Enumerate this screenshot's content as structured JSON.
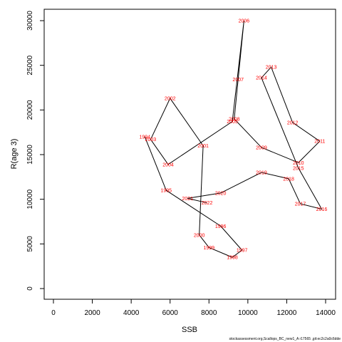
{
  "chart_data": {
    "type": "line",
    "xlabel": "SSB",
    "ylabel": "R(age 3)",
    "xlim": [
      0,
      14000
    ],
    "ylim": [
      0,
      30000
    ],
    "x_ticks": [
      0,
      2000,
      4000,
      6000,
      8000,
      10000,
      12000,
      14000
    ],
    "y_ticks": [
      0,
      5000,
      10000,
      15000,
      20000,
      25000,
      30000
    ],
    "points": [
      {
        "year": "1994",
        "x": 4700,
        "y": 17000
      },
      {
        "year": "1995",
        "x": 5800,
        "y": 11000
      },
      {
        "year": "1996",
        "x": 8600,
        "y": 7000
      },
      {
        "year": "1997",
        "x": 9700,
        "y": 4300
      },
      {
        "year": "1998",
        "x": 9200,
        "y": 3500
      },
      {
        "year": "1999",
        "x": 8000,
        "y": 4600
      },
      {
        "year": "2000",
        "x": 7500,
        "y": 6000
      },
      {
        "year": "2001",
        "x": 7700,
        "y": 16000
      },
      {
        "year": "2002",
        "x": 6000,
        "y": 21300
      },
      {
        "year": "2003",
        "x": 5000,
        "y": 16700
      },
      {
        "year": "2004",
        "x": 5900,
        "y": 13900
      },
      {
        "year": "2005",
        "x": 9200,
        "y": 18700
      },
      {
        "year": "2006",
        "x": 9800,
        "y": 30000
      },
      {
        "year": "2007",
        "x": 9500,
        "y": 23400
      },
      {
        "year": "2008",
        "x": 9300,
        "y": 19000
      },
      {
        "year": "2009",
        "x": 10700,
        "y": 15800
      },
      {
        "year": "2010",
        "x": 12600,
        "y": 14100
      },
      {
        "year": "2011",
        "x": 13700,
        "y": 16500
      },
      {
        "year": "2012",
        "x": 12300,
        "y": 18600
      },
      {
        "year": "2013",
        "x": 11200,
        "y": 24800
      },
      {
        "year": "2014",
        "x": 10700,
        "y": 23600
      },
      {
        "year": "2015",
        "x": 12600,
        "y": 13500
      },
      {
        "year": "2016",
        "x": 13800,
        "y": 8900
      },
      {
        "year": "2017",
        "x": 12700,
        "y": 9500
      },
      {
        "year": "2018",
        "x": 12100,
        "y": 12300
      },
      {
        "year": "2019",
        "x": 10700,
        "y": 13000
      },
      {
        "year": "2020",
        "x": 8600,
        "y": 10700
      },
      {
        "year": "2021",
        "x": 6900,
        "y": 10100
      },
      {
        "year": "2022",
        "x": 7900,
        "y": 9600
      }
    ],
    "line_color": "#000000",
    "label_color": "#ff0000",
    "grid": false
  },
  "caption": "stockassessment.org,Scallops_BC_new1_A r17565 ,git:ec2c2a0c6dde"
}
